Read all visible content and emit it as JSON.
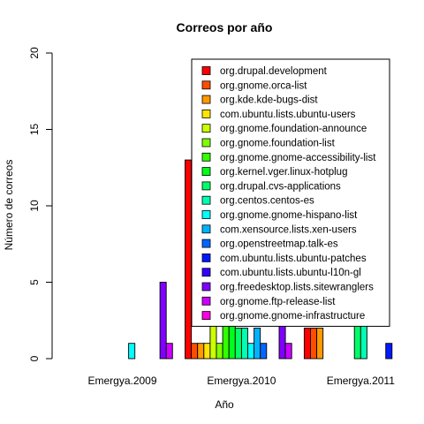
{
  "chart_data": {
    "type": "bar",
    "title": "Correos por año",
    "xlabel": "Año",
    "ylabel": "Número de correos",
    "ylim": [
      0,
      20
    ],
    "yticks": [
      0,
      5,
      10,
      15,
      20
    ],
    "grid": false,
    "legend_position": "top-right",
    "categories": [
      "Emergya.2009",
      "Emergya.2010",
      "Emergya.2011"
    ],
    "series": [
      {
        "name": "org.drupal.development",
        "color": "#FF0000",
        "values": [
          0,
          13,
          2
        ]
      },
      {
        "name": "org.gnome.orca-list",
        "color": "#FF4D00",
        "values": [
          0,
          1,
          2
        ]
      },
      {
        "name": "org.kde.kde-bugs-dist",
        "color": "#FF9900",
        "values": [
          0,
          1,
          2
        ]
      },
      {
        "name": "com.ubuntu.lists.ubuntu-users",
        "color": "#FFE500",
        "values": [
          0,
          1,
          0
        ]
      },
      {
        "name": "org.gnome.foundation-announce",
        "color": "#CCFF00",
        "values": [
          0,
          4,
          0
        ]
      },
      {
        "name": "org.gnome.foundation-list",
        "color": "#80FF00",
        "values": [
          0,
          1,
          0
        ]
      },
      {
        "name": "org.gnome.gnome-accessibility-list",
        "color": "#33FF00",
        "values": [
          0,
          3,
          0
        ]
      },
      {
        "name": "org.kernel.vger.linux-hotplug",
        "color": "#00FF19",
        "values": [
          0,
          3,
          0
        ]
      },
      {
        "name": "org.drupal.cvs-applications",
        "color": "#00FF66",
        "values": [
          0,
          2,
          3
        ]
      },
      {
        "name": "org.centos.centos-es",
        "color": "#00FFB2",
        "values": [
          0,
          2,
          3
        ]
      },
      {
        "name": "org.gnome.gnome-hispano-list",
        "color": "#00FFFF",
        "values": [
          1,
          1,
          0
        ]
      },
      {
        "name": "com.xensource.lists.xen-users",
        "color": "#00B3FF",
        "values": [
          0,
          2,
          0
        ]
      },
      {
        "name": "org.openstreetmap.talk-es",
        "color": "#0066FF",
        "values": [
          0,
          1,
          0
        ]
      },
      {
        "name": "com.ubuntu.lists.ubuntu-patches",
        "color": "#001AFF",
        "values": [
          0,
          0,
          1
        ]
      },
      {
        "name": "com.ubuntu.lists.ubuntu-l10n-gl",
        "color": "#3300FF",
        "values": [
          0,
          0,
          0
        ]
      },
      {
        "name": "org.freedesktop.lists.sitewranglers",
        "color": "#7F00FF",
        "values": [
          5,
          3,
          0
        ]
      },
      {
        "name": "org.gnome.ftp-release-list",
        "color": "#CC00FF",
        "values": [
          1,
          1,
          0
        ]
      },
      {
        "name": "org.gnome.gnome-infrastructure",
        "color": "#FF00E6",
        "values": [
          0,
          0,
          0
        ]
      }
    ]
  }
}
